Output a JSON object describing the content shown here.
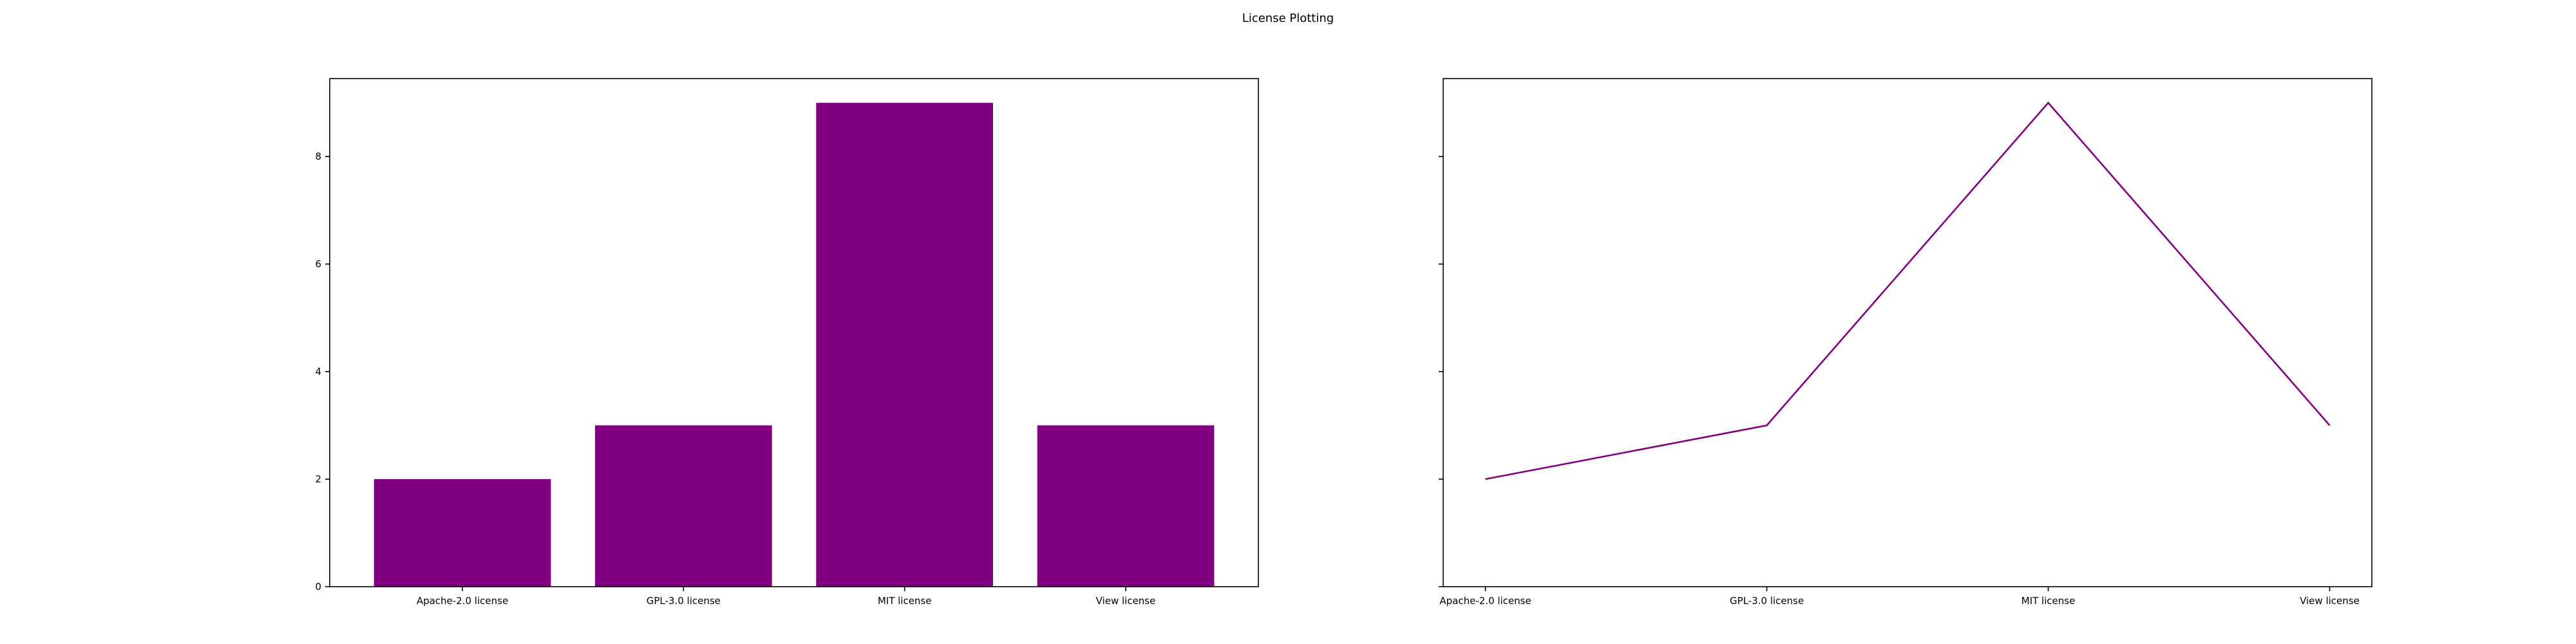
{
  "figure": {
    "title": "License Plotting",
    "color": "#800080"
  },
  "chart_data": [
    {
      "type": "bar",
      "categories": [
        "Apache-2.0 license",
        "GPL-3.0 license",
        "MIT license",
        "View license"
      ],
      "values": [
        2,
        3,
        9,
        3
      ],
      "yticks": [
        0,
        2,
        4,
        6,
        8
      ],
      "ylim": [
        0,
        9.45
      ],
      "title": "",
      "xlabel": "",
      "ylabel": "",
      "grid": false,
      "color": "#800080"
    },
    {
      "type": "line",
      "categories": [
        "Apache-2.0 license",
        "GPL-3.0 license",
        "MIT license",
        "View license"
      ],
      "values": [
        2,
        3,
        9,
        3
      ],
      "yticks": [
        0,
        2,
        4,
        6,
        8
      ],
      "ylim": [
        0,
        9.45
      ],
      "title": "",
      "xlabel": "",
      "ylabel": "",
      "grid": false,
      "color": "#800080"
    }
  ]
}
